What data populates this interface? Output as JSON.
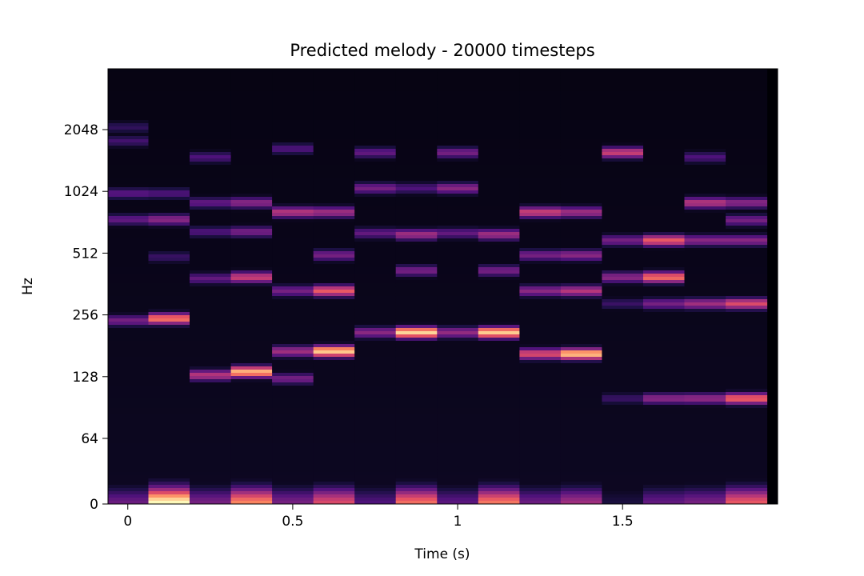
{
  "chart_data": {
    "type": "heatmap",
    "title": "Predicted melody - 20000 timesteps",
    "xlabel": "Time (s)",
    "ylabel": "Hz",
    "x_ticks": [
      {
        "value": 0,
        "label": "0"
      },
      {
        "value": 0.5,
        "label": "0.5"
      },
      {
        "value": 1,
        "label": "1"
      },
      {
        "value": 1.5,
        "label": "1.5"
      }
    ],
    "y_ticks": [
      {
        "value": 0,
        "label": "0"
      },
      {
        "value": 64,
        "label": "64"
      },
      {
        "value": 128,
        "label": "128"
      },
      {
        "value": 256,
        "label": "256"
      },
      {
        "value": 512,
        "label": "512"
      },
      {
        "value": 1024,
        "label": "1024"
      },
      {
        "value": 2048,
        "label": "2048"
      }
    ],
    "y_scale": "log2 (symlog below 64 Hz)",
    "xlim": [
      -0.06,
      1.97
    ],
    "ylim": [
      0,
      4300
    ],
    "colormap": "magma",
    "frame_times": [
      0,
      0.125,
      0.25,
      0.375,
      0.5,
      0.625,
      0.75,
      0.875,
      1.0,
      1.125,
      1.25,
      1.375,
      1.5,
      1.625,
      1.75,
      1.875
    ],
    "frames": [
      {
        "t": 0,
        "peaks": [
          {
            "hz": 0,
            "level": 0.32
          },
          {
            "hz": 240,
            "level": 0.35
          },
          {
            "hz": 745,
            "level": 0.3
          },
          {
            "hz": 1000,
            "level": 0.28
          },
          {
            "hz": 1800,
            "level": 0.22
          },
          {
            "hz": 2100,
            "level": 0.18
          }
        ]
      },
      {
        "t": 0.125,
        "peaks": [
          {
            "hz": 0,
            "level": 1.0
          },
          {
            "hz": 245,
            "level": 0.72
          },
          {
            "hz": 745,
            "level": 0.4
          },
          {
            "hz": 490,
            "level": 0.2
          },
          {
            "hz": 1000,
            "level": 0.25
          }
        ]
      },
      {
        "t": 0.25,
        "peaks": [
          {
            "hz": 0,
            "level": 0.35
          },
          {
            "hz": 130,
            "level": 0.5
          },
          {
            "hz": 385,
            "level": 0.3
          },
          {
            "hz": 650,
            "level": 0.25
          },
          {
            "hz": 900,
            "level": 0.3
          },
          {
            "hz": 1500,
            "level": 0.25
          }
        ]
      },
      {
        "t": 0.375,
        "peaks": [
          {
            "hz": 0,
            "level": 0.75
          },
          {
            "hz": 135,
            "level": 0.85
          },
          {
            "hz": 390,
            "level": 0.55
          },
          {
            "hz": 650,
            "level": 0.35
          },
          {
            "hz": 900,
            "level": 0.4
          }
        ]
      },
      {
        "t": 0.5,
        "peaks": [
          {
            "hz": 0,
            "level": 0.35
          },
          {
            "hz": 125,
            "level": 0.35
          },
          {
            "hz": 170,
            "level": 0.45
          },
          {
            "hz": 335,
            "level": 0.35
          },
          {
            "hz": 810,
            "level": 0.5
          },
          {
            "hz": 1650,
            "level": 0.25
          }
        ]
      },
      {
        "t": 0.625,
        "peaks": [
          {
            "hz": 0,
            "level": 0.6
          },
          {
            "hz": 170,
            "level": 0.9
          },
          {
            "hz": 335,
            "level": 0.65
          },
          {
            "hz": 500,
            "level": 0.35
          },
          {
            "hz": 810,
            "level": 0.45
          }
        ]
      },
      {
        "t": 0.75,
        "peaks": [
          {
            "hz": 0,
            "level": 0.25
          },
          {
            "hz": 210,
            "level": 0.4
          },
          {
            "hz": 640,
            "level": 0.3
          },
          {
            "hz": 1060,
            "level": 0.35
          },
          {
            "hz": 1580,
            "level": 0.3
          }
        ]
      },
      {
        "t": 0.875,
        "peaks": [
          {
            "hz": 0,
            "level": 0.7
          },
          {
            "hz": 210,
            "level": 0.92
          },
          {
            "hz": 420,
            "level": 0.35
          },
          {
            "hz": 630,
            "level": 0.45
          },
          {
            "hz": 1060,
            "level": 0.25
          }
        ]
      },
      {
        "t": 1.0,
        "peaks": [
          {
            "hz": 0,
            "level": 0.28
          },
          {
            "hz": 210,
            "level": 0.42
          },
          {
            "hz": 640,
            "level": 0.3
          },
          {
            "hz": 1060,
            "level": 0.4
          },
          {
            "hz": 1580,
            "level": 0.35
          }
        ]
      },
      {
        "t": 1.125,
        "peaks": [
          {
            "hz": 0,
            "level": 0.72
          },
          {
            "hz": 210,
            "level": 0.9
          },
          {
            "hz": 420,
            "level": 0.35
          },
          {
            "hz": 630,
            "level": 0.45
          }
        ]
      },
      {
        "t": 1.25,
        "peaks": [
          {
            "hz": 0,
            "level": 0.32
          },
          {
            "hz": 165,
            "level": 0.6
          },
          {
            "hz": 335,
            "level": 0.4
          },
          {
            "hz": 500,
            "level": 0.35
          },
          {
            "hz": 810,
            "level": 0.55
          }
        ]
      },
      {
        "t": 1.375,
        "peaks": [
          {
            "hz": 0,
            "level": 0.45
          },
          {
            "hz": 165,
            "level": 0.88
          },
          {
            "hz": 335,
            "level": 0.5
          },
          {
            "hz": 500,
            "level": 0.4
          },
          {
            "hz": 810,
            "level": 0.45
          }
        ]
      },
      {
        "t": 1.5,
        "peaks": [
          {
            "hz": 0,
            "level": 0.12
          },
          {
            "hz": 100,
            "level": 0.2
          },
          {
            "hz": 290,
            "level": 0.2
          },
          {
            "hz": 390,
            "level": 0.4
          },
          {
            "hz": 590,
            "level": 0.35
          },
          {
            "hz": 1580,
            "level": 0.55
          }
        ]
      },
      {
        "t": 1.625,
        "peaks": [
          {
            "hz": 0,
            "level": 0.3
          },
          {
            "hz": 100,
            "level": 0.4
          },
          {
            "hz": 390,
            "level": 0.7
          },
          {
            "hz": 590,
            "level": 0.65
          },
          {
            "hz": 290,
            "level": 0.35
          }
        ]
      },
      {
        "t": 1.75,
        "peaks": [
          {
            "hz": 0,
            "level": 0.35
          },
          {
            "hz": 100,
            "level": 0.42
          },
          {
            "hz": 290,
            "level": 0.45
          },
          {
            "hz": 590,
            "level": 0.4
          },
          {
            "hz": 900,
            "level": 0.5
          },
          {
            "hz": 1500,
            "level": 0.25
          }
        ]
      },
      {
        "t": 1.875,
        "peaks": [
          {
            "hz": 0,
            "level": 0.65
          },
          {
            "hz": 100,
            "level": 0.68
          },
          {
            "hz": 290,
            "level": 0.6
          },
          {
            "hz": 590,
            "level": 0.4
          },
          {
            "hz": 900,
            "level": 0.4
          },
          {
            "hz": 740,
            "level": 0.35
          }
        ]
      }
    ]
  }
}
